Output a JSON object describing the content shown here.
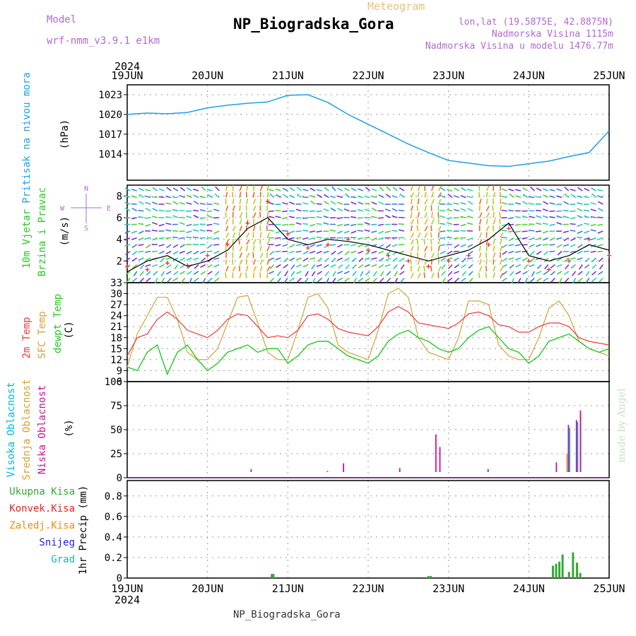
{
  "header": {
    "model_label": "Model",
    "model_name": "wrf-nmm_v3.9.1 e1km",
    "meteogram": "Meteogram",
    "title": "NP_Biogradska_Gora",
    "lonlat": "lon,lat (19.5875E, 42.8875N)",
    "altitude": "Nadmorska Visina 1115m",
    "model_altitude": "Nadmorska Visina u modelu 1476.77m",
    "footer": "NP_Biogradska_Gora",
    "credit": "made by Angel"
  },
  "time_axis": {
    "year": "2024",
    "ticks": [
      "19JUN",
      "20JUN",
      "21JUN",
      "22JUN",
      "23JUN",
      "24JUN",
      "25JUN"
    ]
  },
  "colors": {
    "pressure": "#1ea0e6",
    "temp2m": "#ee3b3b",
    "sfc_temp": "#d4a33a",
    "dewpoint": "#22cc22",
    "high_cloud": "#00b5e6",
    "mid_cloud": "#d8a030",
    "low_cloud": "#cc1199",
    "total_precip": "#33aa33",
    "conv_precip": "#ee2222",
    "frozen_precip": "#ff8800",
    "snow": "#2222ee",
    "hail": "#20b2aa",
    "wind_speed": "#000000",
    "gust": "#ee2222"
  },
  "chart_data": [
    {
      "type": "line",
      "name": "pressure",
      "ylabels": [
        "Pritisak na nivou mora",
        "(hPa)"
      ],
      "yticks": [
        "1014",
        "1017",
        "1020",
        "1023"
      ],
      "ylim": [
        1010,
        1024.5
      ],
      "x": [
        0,
        0.25,
        0.5,
        0.75,
        1,
        1.25,
        1.5,
        1.75,
        2,
        2.25,
        2.5,
        2.75,
        3,
        3.25,
        3.5,
        3.75,
        4,
        4.25,
        4.5,
        4.75,
        5,
        5.25,
        5.5,
        5.75,
        6
      ],
      "series": [
        {
          "values": [
            1020.0,
            1020.1,
            1020.2,
            1019.8,
            1020.2,
            1021.3,
            1021.5,
            1021.8,
            1022.2,
            1023.3,
            1022.5,
            1020.8,
            1019.3,
            1017.7,
            1016.3,
            1014.8,
            1013.0,
            1012.7,
            1012.4,
            1012.0,
            1012.2,
            1012.6,
            1013.2,
            1014.0,
            1014.5
          ]
        },
        {
          "values": [
            1020.0,
            1020.2,
            1020.1,
            1020.3,
            1021.0,
            1021.4,
            1021.7,
            1021.9,
            1022.9,
            1023.0,
            1021.8,
            1020.0,
            1018.5,
            1017.0,
            1015.5,
            1014.2,
            1013.0,
            1012.6,
            1012.2,
            1012.1,
            1012.5,
            1012.9,
            1013.6,
            1014.2,
            1017.5
          ]
        }
      ]
    },
    {
      "type": "line",
      "name": "wind",
      "ylabels": [
        "10m Vjetar",
        "Brzina i Pravac",
        "(m/s)"
      ],
      "compass": [
        "N",
        "W",
        "E",
        "S"
      ],
      "yticks": [
        "2",
        "4",
        "6",
        "8"
      ],
      "ylim": [
        0,
        9
      ],
      "x": [
        0,
        0.25,
        0.5,
        0.75,
        1,
        1.25,
        1.5,
        1.75,
        2,
        2.25,
        2.5,
        2.75,
        3,
        3.25,
        3.5,
        3.75,
        4,
        4.25,
        4.5,
        4.75,
        5,
        5.25,
        5.5,
        5.75,
        6
      ],
      "series": [
        {
          "name": "speed",
          "values": [
            1.0,
            2.0,
            2.5,
            1.5,
            2.0,
            3.0,
            5.0,
            6.0,
            4.0,
            3.5,
            4.0,
            3.8,
            3.5,
            3.0,
            2.5,
            2.0,
            2.5,
            3.0,
            4.0,
            5.5,
            2.5,
            2.0,
            2.5,
            3.5,
            3.0
          ]
        },
        {
          "name": "gust",
          "values": [
            1.5,
            1.2,
            1.8,
            1.6,
            2.5,
            3.5,
            5.5,
            7.5,
            4.5,
            3.2,
            3.5,
            4.0,
            3.0,
            2.5,
            2.0,
            1.5,
            2.0,
            2.5,
            3.5,
            5.0,
            2.0,
            1.2,
            2.0,
            4.0,
            2.5
          ]
        }
      ]
    },
    {
      "type": "line",
      "name": "temperature",
      "ylabels": [
        "2m Temp",
        "SFC Temp",
        "dewpt Temp",
        "(C)"
      ],
      "yticks": [
        "6",
        "9",
        "12",
        "15",
        "18",
        "21",
        "24",
        "27",
        "30",
        "33"
      ],
      "ylim": [
        6,
        33
      ],
      "x": [
        0,
        0.125,
        0.25,
        0.375,
        0.5,
        0.625,
        0.75,
        0.875,
        1,
        1.125,
        1.25,
        1.375,
        1.5,
        1.625,
        1.75,
        1.875,
        2,
        2.125,
        2.25,
        2.375,
        2.5,
        2.625,
        2.75,
        2.875,
        3,
        3.125,
        3.25,
        3.375,
        3.5,
        3.625,
        3.75,
        3.875,
        4,
        4.125,
        4.25,
        4.375,
        4.5,
        4.625,
        4.75,
        4.875,
        5,
        5.125,
        5.25,
        5.375,
        5.5,
        5.625,
        5.75,
        5.875,
        6
      ],
      "series": [
        {
          "name": "2m",
          "values": [
            13,
            18,
            19,
            23,
            25,
            23,
            20,
            19,
            18,
            20,
            23,
            24.5,
            24,
            21,
            18,
            18.5,
            18,
            20,
            24,
            24.5,
            23,
            20.5,
            19.5,
            19,
            18.5,
            21,
            25,
            26.5,
            25,
            22,
            21.5,
            21,
            20.5,
            22,
            24.5,
            25,
            24,
            21.5,
            21,
            19.5,
            19.5,
            21,
            22,
            22,
            21,
            18,
            17,
            16.5,
            16
          ]
        },
        {
          "name": "sfc",
          "values": [
            10,
            19,
            24,
            29,
            29,
            23,
            14,
            12,
            12,
            15,
            22,
            29,
            29.5,
            22,
            14,
            12,
            12,
            20,
            29,
            30,
            26,
            16,
            14,
            13,
            12,
            20,
            30,
            31.5,
            29,
            18,
            14,
            13,
            12,
            18,
            28,
            28,
            27,
            16,
            13,
            12,
            12,
            18,
            26,
            28,
            24,
            17,
            15,
            14,
            13
          ]
        },
        {
          "name": "dewpt",
          "values": [
            10,
            9,
            14,
            16,
            8,
            14,
            16,
            12,
            9,
            11,
            14,
            15,
            16,
            14,
            15,
            15,
            11,
            13,
            16,
            17,
            17,
            15,
            13,
            12,
            11,
            13,
            17,
            19,
            20,
            18,
            17,
            15,
            14,
            15,
            18,
            20,
            21,
            18,
            15,
            14,
            11,
            13,
            17,
            18,
            19,
            17,
            15,
            14,
            15
          ]
        }
      ]
    },
    {
      "type": "bar",
      "name": "cloud_cover",
      "ylabels": [
        "Visoka Oblacnost",
        "Srednja Oblacnost",
        "Niska Oblacnost",
        "(%)"
      ],
      "yticks": [
        "0",
        "25",
        "50",
        "75",
        "100"
      ],
      "ylim": [
        0,
        100
      ],
      "series": [
        {
          "name": "high",
          "x": [
            2.5,
            3.9,
            4.75,
            5.5,
            5.6
          ],
          "values": [
            1,
            2,
            2,
            52,
            58
          ]
        },
        {
          "name": "mid",
          "x": [
            3.8,
            4.7,
            4.75,
            5.45,
            5.62
          ],
          "values": [
            4,
            5,
            4,
            25,
            65
          ]
        },
        {
          "name": "low",
          "x": [
            0.7,
            1.5,
            2.45,
            2.65,
            3.35,
            3.8,
            3.85,
            4.1,
            4.45,
            4.55,
            5.3,
            5.45,
            5.55,
            5.6
          ],
          "values": [
            6,
            9,
            7,
            15,
            10,
            45,
            32,
            5,
            9,
            4,
            16,
            55,
            60,
            70
          ]
        }
      ]
    },
    {
      "type": "bar",
      "name": "precipitation",
      "ylabels": [
        "1hr Precip (mm)"
      ],
      "legend": [
        "Ukupna Kisa",
        "Konvek.Kisa",
        "Zaledj.Kisa",
        "Snijeg",
        "Grad"
      ],
      "yticks": [
        "0",
        "0.2",
        "0.4",
        "0.6",
        "0.8"
      ],
      "ylim": [
        0,
        0.95
      ],
      "x": [
        1.8,
        1.82,
        3.75,
        3.78,
        5.3,
        5.34,
        5.38,
        5.42,
        5.5,
        5.55,
        5.6,
        5.64
      ],
      "values": [
        0.04,
        0.04,
        0.02,
        0.02,
        0.12,
        0.14,
        0.16,
        0.23,
        0.06,
        0.25,
        0.15,
        0.05
      ]
    }
  ]
}
